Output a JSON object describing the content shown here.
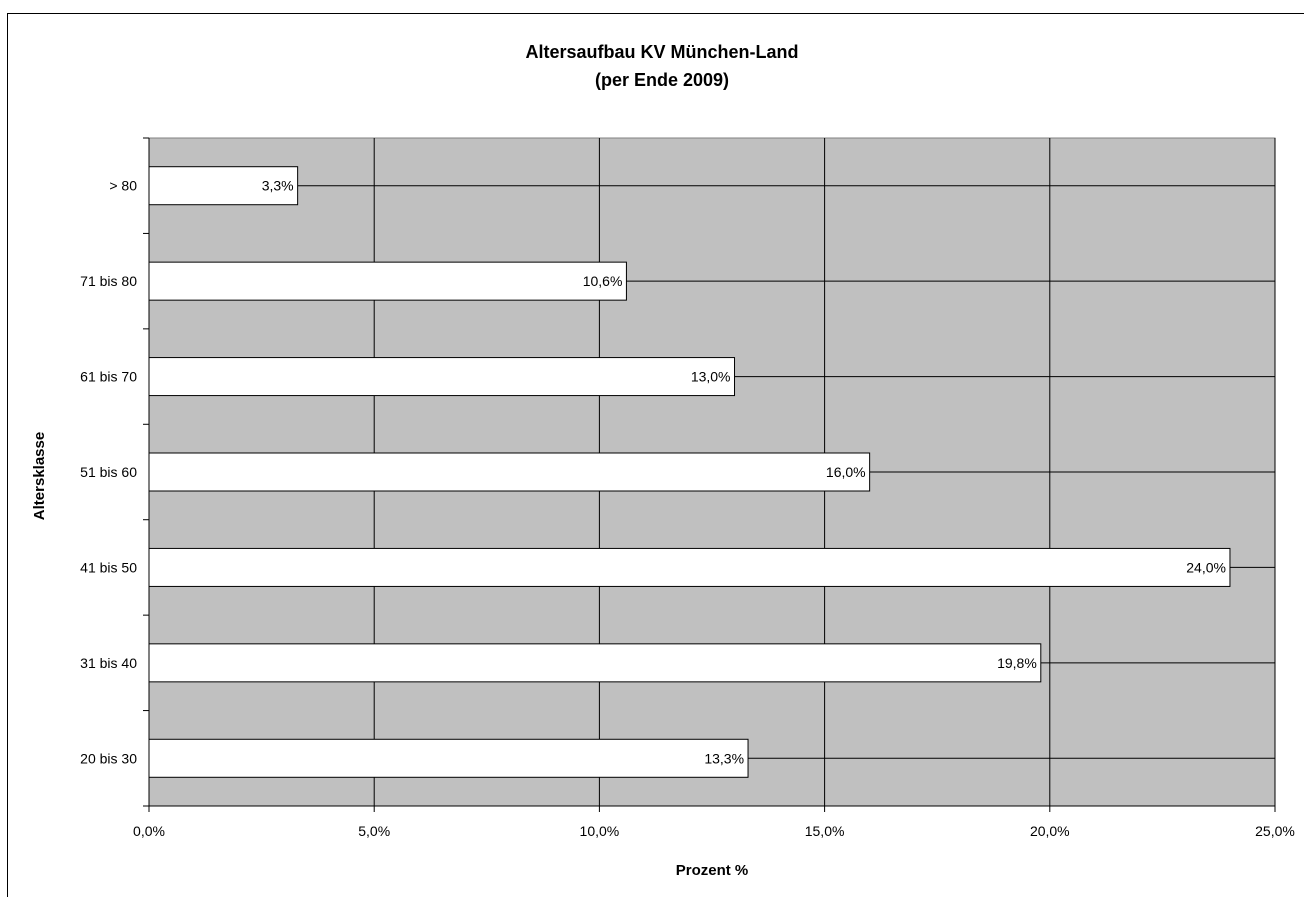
{
  "chart_data": {
    "type": "bar",
    "orientation": "horizontal",
    "title": "Altersaufbau KV München-Land",
    "subtitle": "(per Ende 2009)",
    "xlabel": "Prozent %",
    "ylabel": "Altersklasse",
    "categories": [
      "20 bis 30",
      "31 bis 40",
      "41 bis 50",
      "51 bis 60",
      "61 bis 70",
      "71 bis 80",
      "> 80"
    ],
    "values": [
      13.3,
      19.8,
      24.0,
      16.0,
      13.0,
      10.6,
      3.3
    ],
    "data_labels": [
      "13,3%",
      "19,8%",
      "24,0%",
      "16,0%",
      "13,0%",
      "10,6%",
      "3,3%"
    ],
    "xlim": [
      0,
      25
    ],
    "x_ticks": [
      0,
      5,
      10,
      15,
      20,
      25
    ],
    "x_tick_labels": [
      "0,0%",
      "5,0%",
      "10,0%",
      "15,0%",
      "20,0%",
      "25,0%"
    ],
    "grid": true,
    "colors": {
      "plot_background": "#c0c0c0",
      "bar_fill": "#ffffff",
      "line": "#000000"
    }
  }
}
